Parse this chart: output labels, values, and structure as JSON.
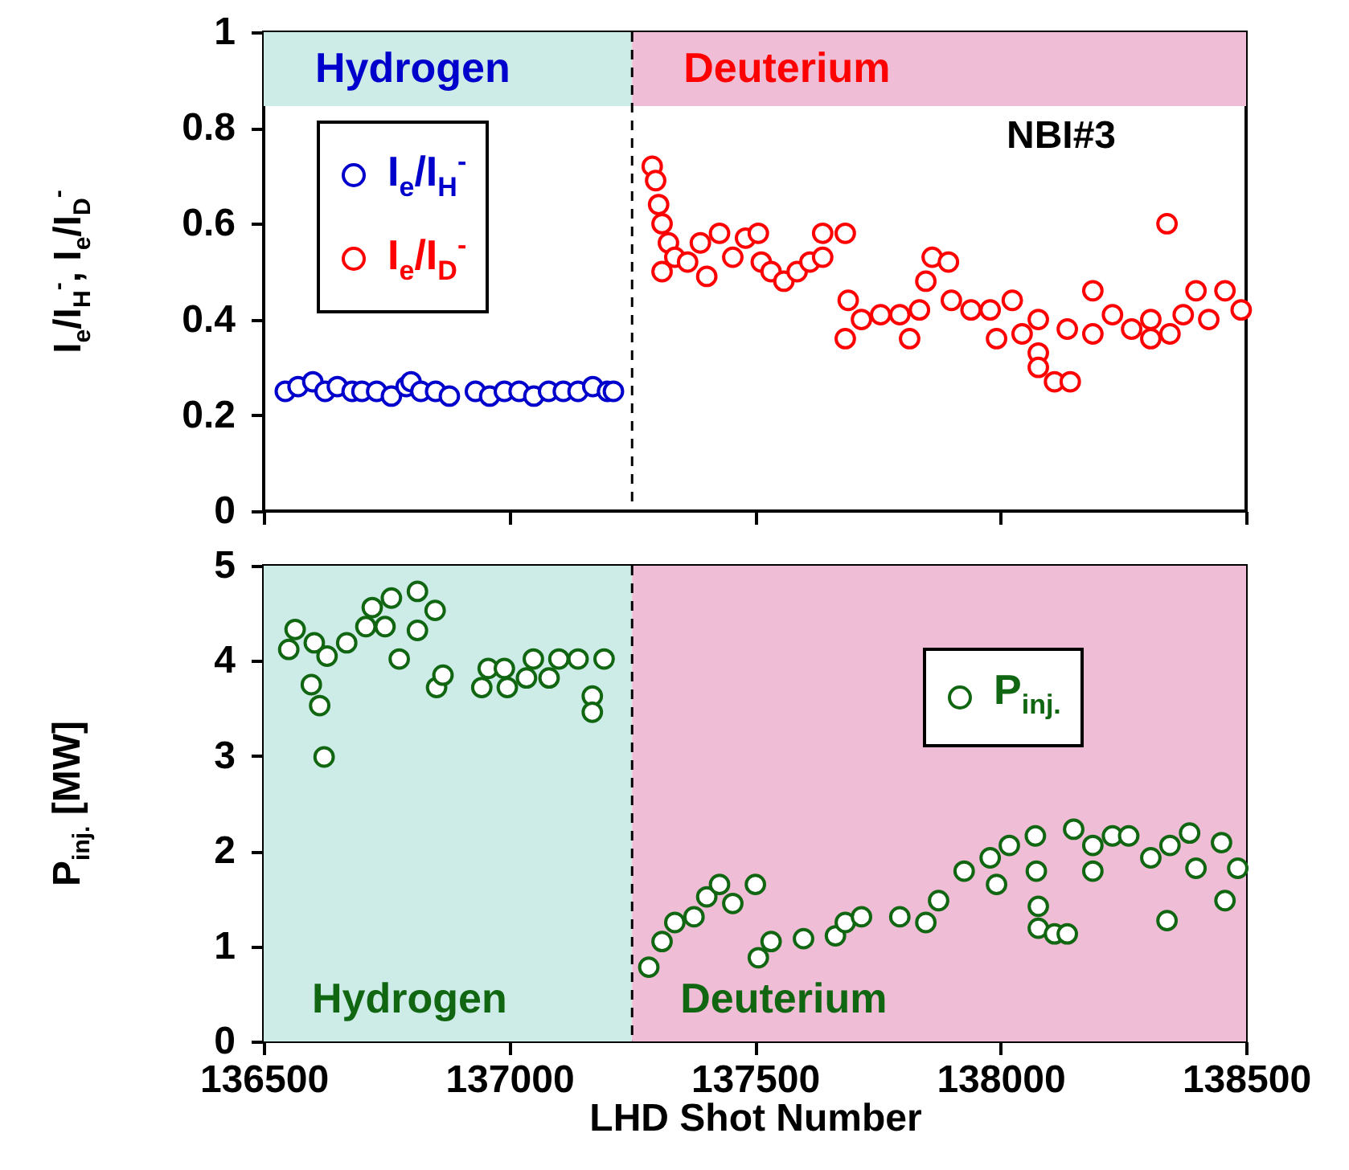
{
  "chart_data": [
    {
      "type": "scatter",
      "ylabel": "I$_{e}$/I$_{H}$$^{-}$, I$_{e}$/I$_{D}$$^{-}$",
      "xlim": [
        136500,
        138500
      ],
      "ylim": [
        0,
        1
      ],
      "xticks": [
        136500,
        137000,
        137500,
        138000,
        138500
      ],
      "yticks": [
        0,
        0.2,
        0.4,
        0.6,
        0.8,
        1
      ],
      "tick_labels": "y",
      "grid": false,
      "legend": "top left",
      "marker": "circle",
      "annotations": [
        "NBI#3"
      ],
      "bands": [
        {
          "axis": "x",
          "from": 136500,
          "to": 137250,
          "label": "Hydrogen",
          "color": "#cdece8"
        },
        {
          "axis": "x",
          "from": 137250,
          "to": 138500,
          "label": "Deuterium",
          "color": "#efbdd6"
        }
      ],
      "ref_lines": [
        {
          "axis": "x",
          "value": 137250,
          "line_style": "dashed",
          "color": "#000000"
        }
      ],
      "series": [
        {
          "name": "I$_{e}$/I$_{H}$$^{-}$",
          "color": "#0000cc",
          "x": [
            136544,
            136570,
            136600,
            136625,
            136650,
            136680,
            136700,
            136730,
            136760,
            136790,
            136800,
            136820,
            136850,
            136878,
            136931,
            136960,
            136990,
            137020,
            137050,
            137080,
            137110,
            137140,
            137170,
            137200,
            137212
          ],
          "values": [
            0.25,
            0.26,
            0.27,
            0.25,
            0.26,
            0.25,
            0.25,
            0.25,
            0.24,
            0.26,
            0.27,
            0.25,
            0.25,
            0.24,
            0.25,
            0.24,
            0.25,
            0.25,
            0.24,
            0.25,
            0.25,
            0.25,
            0.26,
            0.25,
            0.25
          ]
        },
        {
          "name": "I$_{e}$/I$_{D}$$^{-}$",
          "color": "#ff0000",
          "x": [
            137291,
            137298,
            137304,
            137311,
            137311,
            137324,
            137337,
            137363,
            137389,
            137402,
            137428,
            137455,
            137481,
            137507,
            137513,
            137533,
            137559,
            137586,
            137612,
            137638,
            137638,
            137684,
            137690,
            137684,
            137717,
            137756,
            137795,
            137815,
            137835,
            137848,
            137861,
            137894,
            137900,
            137940,
            137979,
            137992,
            138024,
            138044,
            138077,
            138077,
            138077,
            138110,
            138142,
            138136,
            138188,
            138188,
            138228,
            138267,
            138306,
            138306,
            138339,
            138345,
            138372,
            138398,
            138424,
            138457,
            138490
          ],
          "values": [
            0.72,
            0.69,
            0.64,
            0.6,
            0.5,
            0.56,
            0.53,
            0.52,
            0.56,
            0.49,
            0.58,
            0.53,
            0.57,
            0.58,
            0.52,
            0.5,
            0.48,
            0.5,
            0.52,
            0.53,
            0.58,
            0.58,
            0.44,
            0.36,
            0.4,
            0.41,
            0.41,
            0.36,
            0.42,
            0.48,
            0.53,
            0.52,
            0.44,
            0.42,
            0.42,
            0.36,
            0.44,
            0.37,
            0.4,
            0.33,
            0.3,
            0.27,
            0.27,
            0.38,
            0.46,
            0.37,
            0.41,
            0.38,
            0.4,
            0.36,
            0.6,
            0.37,
            0.41,
            0.46,
            0.4,
            0.46,
            0.42
          ]
        }
      ]
    },
    {
      "type": "scatter",
      "xlabel": "LHD Shot Number",
      "ylabel": "P$_{inj.}$ [MW]",
      "xlim": [
        136500,
        138500
      ],
      "ylim": [
        0,
        5
      ],
      "xticks": [
        136500,
        137000,
        137500,
        138000,
        138500
      ],
      "yticks": [
        0,
        1,
        2,
        3,
        4,
        5
      ],
      "grid": false,
      "legend": "right",
      "marker": "circle",
      "bands": [
        {
          "axis": "x",
          "from": 136500,
          "to": 137250,
          "label": "Hydrogen",
          "color": "#cdece8"
        },
        {
          "axis": "x",
          "from": 137250,
          "to": 138500,
          "label": "Deuterium",
          "color": "#efbdd6"
        }
      ],
      "ref_lines": [
        {
          "axis": "x",
          "value": 137250,
          "line_style": "dashed",
          "color": "#000000"
        }
      ],
      "series": [
        {
          "name": "P$_{inj.}$",
          "color": "#116611",
          "x": [
            136551,
            136564,
            136603,
            136597,
            136614,
            136623,
            136629,
            136669,
            136708,
            136721,
            136747,
            136760,
            136776,
            136813,
            136813,
            136849,
            136852,
            136865,
            136944,
            136957,
            136990,
            136996,
            137035,
            137049,
            137081,
            137101,
            137140,
            137169,
            137169,
            137193,
            137284,
            137311,
            137337,
            137376,
            137402,
            137428,
            137455,
            137501,
            137507,
            137533,
            137599,
            137664,
            137684,
            137717,
            137795,
            137848,
            137874,
            137926,
            137979,
            137992,
            138018,
            138071,
            138073,
            138077,
            138077,
            138110,
            138136,
            138149,
            138188,
            138188,
            138228,
            138261,
            138306,
            138339,
            138345,
            138385,
            138398,
            138450,
            138457,
            138483
          ],
          "values": [
            4.12,
            4.33,
            4.19,
            3.75,
            3.53,
            2.99,
            4.05,
            4.19,
            4.36,
            4.56,
            4.36,
            4.66,
            4.02,
            4.73,
            4.32,
            4.53,
            3.72,
            3.85,
            3.72,
            3.92,
            3.92,
            3.72,
            3.82,
            4.02,
            3.82,
            4.02,
            4.02,
            3.63,
            3.46,
            4.02,
            0.78,
            1.05,
            1.25,
            1.31,
            1.52,
            1.65,
            1.45,
            1.65,
            0.88,
            1.05,
            1.08,
            1.11,
            1.25,
            1.31,
            1.31,
            1.25,
            1.48,
            1.79,
            1.93,
            1.65,
            2.06,
            2.16,
            1.79,
            1.42,
            1.19,
            1.13,
            1.13,
            2.23,
            2.06,
            1.79,
            2.16,
            2.16,
            1.93,
            1.27,
            2.06,
            2.19,
            1.82,
            2.09,
            1.48,
            1.82
          ]
        }
      ]
    }
  ]
}
